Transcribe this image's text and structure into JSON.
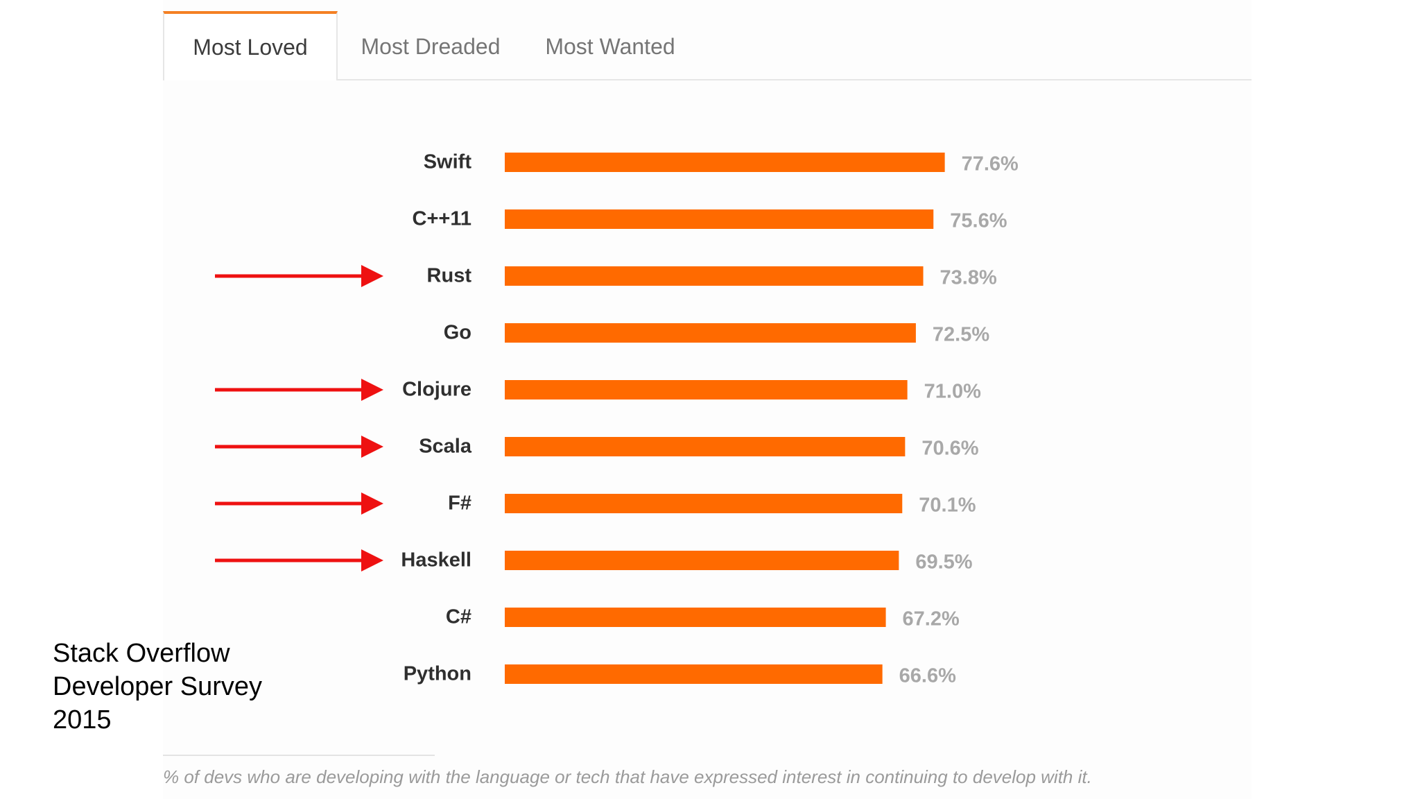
{
  "tabs": [
    {
      "label": "Most Loved",
      "active": true
    },
    {
      "label": "Most Dreaded",
      "active": false
    },
    {
      "label": "Most Wanted",
      "active": false
    }
  ],
  "caption": "Stack Overflow\nDeveloper Survey\n2015",
  "footnote": "% of devs who are developing with the language or tech that have expressed interest in continuing to develop with it.",
  "colors": {
    "bar": "#ff6a00",
    "arrow": "#ee1111",
    "active_tab_accent": "#f48024"
  },
  "chart_data": {
    "type": "bar",
    "orientation": "horizontal",
    "categories": [
      "Swift",
      "C++11",
      "Rust",
      "Go",
      "Clojure",
      "Scala",
      "F#",
      "Haskell",
      "C#",
      "Python"
    ],
    "values": [
      77.6,
      75.6,
      73.8,
      72.5,
      71.0,
      70.6,
      70.1,
      69.5,
      67.2,
      66.6
    ],
    "value_labels": [
      "77.6%",
      "75.6%",
      "73.8%",
      "72.5%",
      "71.0%",
      "70.6%",
      "70.1%",
      "69.5%",
      "67.2%",
      "66.6%"
    ],
    "value_unit": "%",
    "highlighted": [
      "Rust",
      "Clojure",
      "Scala",
      "F#",
      "Haskell"
    ],
    "title": "",
    "xlabel": "",
    "ylabel": "",
    "grid": false
  }
}
